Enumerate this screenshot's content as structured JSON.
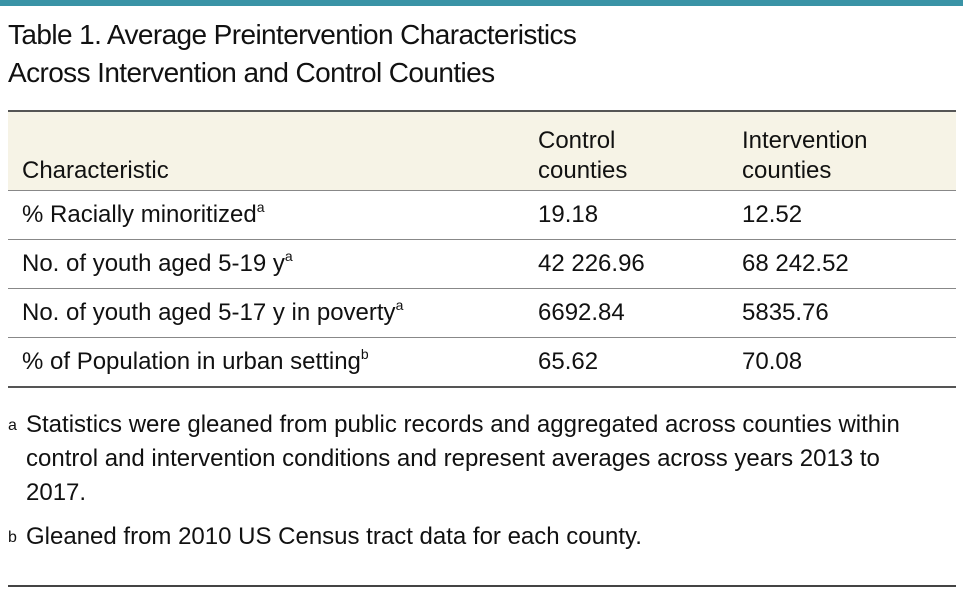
{
  "title": {
    "line1": "Table 1. Average Preintervention Characteristics",
    "line2": "Across Intervention and Control Counties"
  },
  "table": {
    "headers": {
      "characteristic": "Characteristic",
      "control_line1": "Control",
      "control_line2": "counties",
      "intervention_line1": "Intervention",
      "intervention_line2": "counties"
    },
    "rows": [
      {
        "label": "% Racially minoritized",
        "mark": "a",
        "control": "19.18",
        "intervention": "12.52"
      },
      {
        "label": "No. of youth aged 5-19 y",
        "mark": "a",
        "control": "42 226.96",
        "intervention": "68 242.52"
      },
      {
        "label": "No. of youth aged 5-17 y in poverty",
        "mark": "a",
        "control": "6692.84",
        "intervention": "5835.76"
      },
      {
        "label": "% of Population in urban setting",
        "mark": "b",
        "control": "65.62",
        "intervention": "70.08"
      }
    ]
  },
  "footnotes": [
    {
      "mark": "a",
      "text": "Statistics were gleaned from public records and aggregated across counties within control and intervention conditions and represent averages across years 2013 to 2017."
    },
    {
      "mark": "b",
      "text": "Gleaned from 2010 US Census tract data for each county."
    }
  ]
}
